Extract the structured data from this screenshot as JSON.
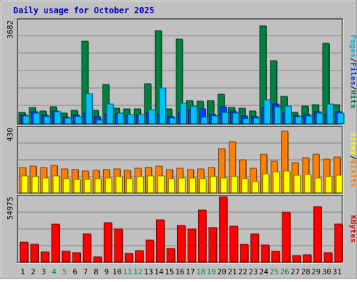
{
  "chart_data": {
    "type": "bar",
    "title": "Daily usage for October 2025",
    "days": [
      "1",
      "2",
      "3",
      "4",
      "5",
      "6",
      "7",
      "8",
      "9",
      "10",
      "11",
      "12",
      "13",
      "14",
      "15",
      "16",
      "17",
      "18",
      "19",
      "20",
      "21",
      "22",
      "23",
      "24",
      "25",
      "26",
      "27",
      "28",
      "29",
      "30",
      "31"
    ],
    "weekend_days": [
      "4",
      "5",
      "11",
      "12",
      "18",
      "19",
      "25",
      "26"
    ],
    "panels": [
      {
        "name": "hits_files_pages",
        "ymax_label": "3682",
        "ylim": [
          0,
          3682
        ],
        "legend": [
          "Pages",
          "/",
          "Files",
          "/",
          "Hits"
        ],
        "series": [
          {
            "name": "Hits",
            "color": "#008040",
            "values": [
              430,
              600,
              470,
              630,
              390,
              490,
              2980,
              500,
              1430,
              580,
              560,
              540,
              1450,
              3350,
              560,
              3050,
              850,
              830,
              850,
              1080,
              590,
              570,
              470,
              3540,
              2280,
              990,
              420,
              640,
              710,
              2900,
              710
            ]
          },
          {
            "name": "Files",
            "color": "#0040ff",
            "values": [
              330,
              440,
              330,
              470,
              240,
              320,
              400,
              280,
              380,
              380,
              310,
              330,
              430,
              380,
              270,
              420,
              490,
              560,
              350,
              620,
              440,
              300,
              270,
              600,
              720,
              410,
              300,
              350,
              460,
              360,
              440
            ]
          },
          {
            "name": "Pages",
            "color": "#00c0ff",
            "values": [
              300,
              410,
              270,
              450,
              220,
              270,
              1100,
              140,
              730,
              400,
              340,
              360,
              530,
              1300,
              230,
              760,
              640,
              240,
              310,
              420,
              400,
              190,
              220,
              880,
              620,
              650,
              280,
              310,
              410,
              720,
              400
            ]
          }
        ]
      },
      {
        "name": "visits_sites",
        "ymax_label": "430",
        "ylim": [
          0,
          430
        ],
        "legend": [
          "Sites",
          "/",
          "Visits"
        ],
        "series": [
          {
            "name": "Visits",
            "color": "#ff8000",
            "values": [
              175,
              180,
              175,
              185,
              165,
              160,
              150,
              155,
              160,
              165,
              155,
              170,
              175,
              180,
              160,
              170,
              160,
              165,
              175,
              300,
              345,
              225,
              170,
              260,
              215,
              415,
              205,
              240,
              260,
              230,
              245
            ]
          },
          {
            "name": "Sites",
            "color": "#ffff00",
            "values": [
              115,
              110,
              105,
              115,
              100,
              95,
              95,
              100,
              105,
              110,
              100,
              110,
              115,
              115,
              100,
              105,
              105,
              100,
              110,
              105,
              110,
              100,
              80,
              130,
              145,
              150,
              120,
              125,
              105,
              110,
              120
            ]
          }
        ]
      },
      {
        "name": "kbytes",
        "ymax_label": "54975",
        "ylim": [
          0,
          54975
        ],
        "legend": [
          "KBytes"
        ],
        "series": [
          {
            "name": "KBytes",
            "color": "#ff0000",
            "values": [
              17600,
              15800,
              8700,
              33000,
              9800,
              8500,
              24700,
              4700,
              33800,
              28700,
              7700,
              10000,
              18900,
              36600,
              12100,
              31800,
              28500,
              45000,
              29600,
              56000,
              30900,
              15400,
              24700,
              15200,
              9400,
              42800,
              5900,
              6300,
              48100,
              8300,
              32600
            ]
          }
        ]
      }
    ]
  }
}
